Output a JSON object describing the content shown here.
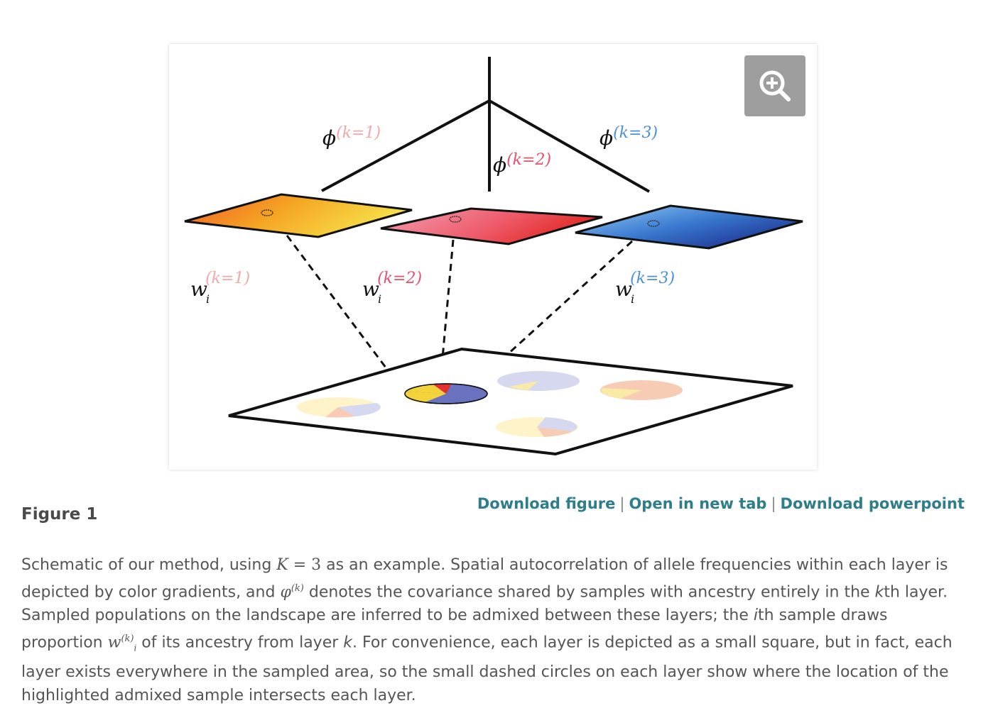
{
  "figure": {
    "title": "Figure 1",
    "zoom_icon": "zoom-in-icon",
    "labels": {
      "phi_symbol": "ϕ",
      "w_symbol": "w",
      "w_sub": "i",
      "k1": "(k=1)",
      "k2": "(k=2)",
      "k3": "(k=3)"
    },
    "colors": {
      "k1": "#f0a8a8",
      "k2": "#e8506a",
      "k3": "#4a90d9"
    }
  },
  "links": {
    "download_figure": "Download figure",
    "open_new_tab": "Open in new tab",
    "download_powerpoint": "Download powerpoint",
    "separator": "|"
  },
  "caption": {
    "p1": "Schematic of our method, using ",
    "K_var": "K",
    "K_eq": " = 3",
    "p2": " as an example. Spatial autocorrelation of allele frequencies within each layer is depicted by color gradients, and ",
    "phi_var": "φ",
    "phi_sup": "(k)",
    "p3": " denotes the covariance shared by samples with ancestry entirely in the ",
    "k_var": "k",
    "p4": "th layer. Sampled populations on the landscape are inferred to be admixed between these layers; the ",
    "i_var": "i",
    "p5": "th sample draws proportion ",
    "w_var": "w",
    "w_sub": "i",
    "w_sup": "(k)",
    "p6": " of its ancestry from layer ",
    "k_var2": "k",
    "p7": ". For convenience, each layer is depicted as a small square, but in fact, each layer exists everywhere in the sampled area, so the small dashed circles on each layer show where the location of the highlighted admixed sample intersects each layer."
  }
}
